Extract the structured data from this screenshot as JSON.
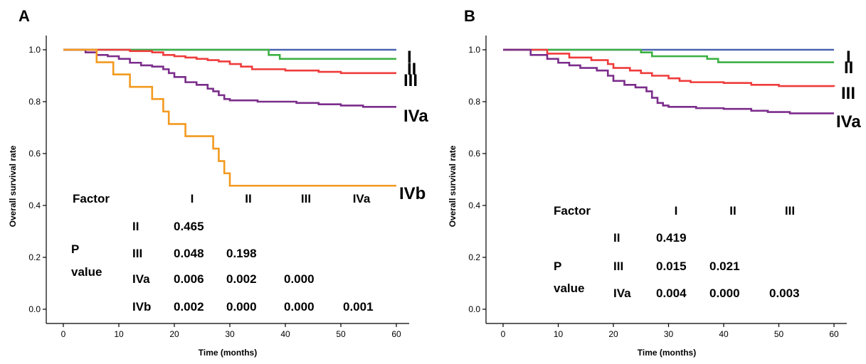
{
  "chart_data": [
    {
      "type": "line",
      "panel_label": "A",
      "xlabel": "Time (months)",
      "ylabel": "Overall survival rate",
      "xlim": [
        0,
        60
      ],
      "ylim": [
        0,
        1.0
      ],
      "xticks": [
        "0",
        "10",
        "20",
        "30",
        "40",
        "50",
        "60"
      ],
      "yticks": [
        "0.0",
        "0.2",
        "0.4",
        "0.6",
        "0.8",
        "1.0"
      ],
      "series": [
        {
          "name": "I",
          "color": "#4a63b0",
          "steps": [
            [
              0,
              1.0
            ],
            [
              60,
              1.0
            ]
          ]
        },
        {
          "name": "II",
          "color": "#3cb043",
          "steps": [
            [
              0,
              1.0
            ],
            [
              37,
              1.0
            ],
            [
              37,
              0.98
            ],
            [
              39,
              0.98
            ],
            [
              39,
              0.965
            ],
            [
              60,
              0.965
            ]
          ]
        },
        {
          "name": "III",
          "color": "#ef3b3b",
          "steps": [
            [
              0,
              1.0
            ],
            [
              12,
              0.995
            ],
            [
              16,
              0.99
            ],
            [
              18,
              0.98
            ],
            [
              20,
              0.975
            ],
            [
              22,
              0.97
            ],
            [
              24,
              0.965
            ],
            [
              26,
              0.96
            ],
            [
              28,
              0.955
            ],
            [
              30,
              0.945
            ],
            [
              32,
              0.935
            ],
            [
              34,
              0.925
            ],
            [
              40,
              0.92
            ],
            [
              46,
              0.915
            ],
            [
              50,
              0.91
            ],
            [
              60,
              0.91
            ]
          ]
        },
        {
          "name": "IVa",
          "color": "#7b2d8b",
          "steps": [
            [
              0,
              1.0
            ],
            [
              4,
              0.99
            ],
            [
              6,
              0.98
            ],
            [
              8,
              0.975
            ],
            [
              10,
              0.965
            ],
            [
              12,
              0.95
            ],
            [
              14,
              0.94
            ],
            [
              16,
              0.935
            ],
            [
              18,
              0.925
            ],
            [
              19,
              0.91
            ],
            [
              20,
              0.895
            ],
            [
              22,
              0.875
            ],
            [
              24,
              0.865
            ],
            [
              26,
              0.85
            ],
            [
              27,
              0.84
            ],
            [
              28,
              0.825
            ],
            [
              29,
              0.81
            ],
            [
              30,
              0.805
            ],
            [
              35,
              0.8
            ],
            [
              42,
              0.795
            ],
            [
              46,
              0.79
            ],
            [
              50,
              0.785
            ],
            [
              54,
              0.78
            ],
            [
              60,
              0.78
            ]
          ]
        },
        {
          "name": "IVb",
          "color": "#f39a1f",
          "steps": [
            [
              0,
              1.0
            ],
            [
              6,
              1.0
            ],
            [
              6,
              0.952
            ],
            [
              9,
              0.952
            ],
            [
              9,
              0.905
            ],
            [
              12,
              0.905
            ],
            [
              12,
              0.857
            ],
            [
              16,
              0.857
            ],
            [
              16,
              0.81
            ],
            [
              18,
              0.81
            ],
            [
              18,
              0.762
            ],
            [
              19,
              0.762
            ],
            [
              19,
              0.714
            ],
            [
              22,
              0.714
            ],
            [
              22,
              0.667
            ],
            [
              27,
              0.667
            ],
            [
              27,
              0.619
            ],
            [
              28,
              0.619
            ],
            [
              28,
              0.571
            ],
            [
              29,
              0.571
            ],
            [
              29,
              0.524
            ],
            [
              30,
              0.524
            ],
            [
              30,
              0.476
            ],
            [
              60,
              0.476
            ]
          ]
        }
      ],
      "p_table": {
        "header": "Factor",
        "columns": [
          "I",
          "II",
          "III",
          "IVa"
        ],
        "row_label_lines": [
          "P",
          "value"
        ],
        "rows": [
          {
            "label": "II",
            "values": [
              "0.465"
            ]
          },
          {
            "label": "III",
            "values": [
              "0.048",
              "0.198"
            ]
          },
          {
            "label": "IVa",
            "values": [
              "0.006",
              "0.002",
              "0.000"
            ]
          },
          {
            "label": "IVb",
            "values": [
              "0.002",
              "0.000",
              "0.000",
              "0.001"
            ]
          }
        ]
      }
    },
    {
      "type": "line",
      "panel_label": "B",
      "xlabel": "Time (months)",
      "ylabel": "Overall survival rate",
      "xlim": [
        0,
        60
      ],
      "ylim": [
        0,
        1.0
      ],
      "xticks": [
        "0",
        "10",
        "20",
        "30",
        "40",
        "50",
        "60"
      ],
      "yticks": [
        "0.0",
        "0.2",
        "0.4",
        "0.6",
        "0.8",
        "1.0"
      ],
      "series": [
        {
          "name": "I",
          "color": "#4a63b0",
          "steps": [
            [
              0,
              1.0
            ],
            [
              60,
              1.0
            ]
          ]
        },
        {
          "name": "II",
          "color": "#3cb043",
          "steps": [
            [
              0,
              1.0
            ],
            [
              25,
              1.0
            ],
            [
              25,
              0.99
            ],
            [
              27,
              0.99
            ],
            [
              27,
              0.975
            ],
            [
              37,
              0.975
            ],
            [
              37,
              0.965
            ],
            [
              39,
              0.965
            ],
            [
              39,
              0.952
            ],
            [
              60,
              0.952
            ]
          ]
        },
        {
          "name": "III",
          "color": "#ef3b3b",
          "steps": [
            [
              0,
              1.0
            ],
            [
              8,
              0.985
            ],
            [
              12,
              0.97
            ],
            [
              16,
              0.96
            ],
            [
              19,
              0.945
            ],
            [
              20,
              0.93
            ],
            [
              23,
              0.92
            ],
            [
              25,
              0.91
            ],
            [
              27,
              0.9
            ],
            [
              30,
              0.89
            ],
            [
              32,
              0.88
            ],
            [
              34,
              0.875
            ],
            [
              40,
              0.872
            ],
            [
              45,
              0.865
            ],
            [
              50,
              0.86
            ],
            [
              60,
              0.858
            ]
          ]
        },
        {
          "name": "IVa",
          "color": "#7b2d8b",
          "steps": [
            [
              0,
              1.0
            ],
            [
              5,
              0.98
            ],
            [
              8,
              0.965
            ],
            [
              10,
              0.95
            ],
            [
              12,
              0.94
            ],
            [
              14,
              0.93
            ],
            [
              17,
              0.92
            ],
            [
              19,
              0.9
            ],
            [
              20,
              0.88
            ],
            [
              22,
              0.865
            ],
            [
              24,
              0.855
            ],
            [
              26,
              0.84
            ],
            [
              27,
              0.815
            ],
            [
              28,
              0.795
            ],
            [
              29,
              0.785
            ],
            [
              30,
              0.78
            ],
            [
              35,
              0.775
            ],
            [
              40,
              0.772
            ],
            [
              45,
              0.765
            ],
            [
              48,
              0.76
            ],
            [
              52,
              0.755
            ],
            [
              60,
              0.755
            ]
          ]
        }
      ],
      "p_table": {
        "header": "Factor",
        "columns": [
          "I",
          "II",
          "III"
        ],
        "row_label_lines": [
          "P",
          "value"
        ],
        "rows": [
          {
            "label": "II",
            "values": [
              "0.419"
            ]
          },
          {
            "label": "III",
            "values": [
              "0.015",
              "0.021"
            ]
          },
          {
            "label": "IVa",
            "values": [
              "0.004",
              "0.000",
              "0.003"
            ]
          }
        ]
      }
    }
  ]
}
